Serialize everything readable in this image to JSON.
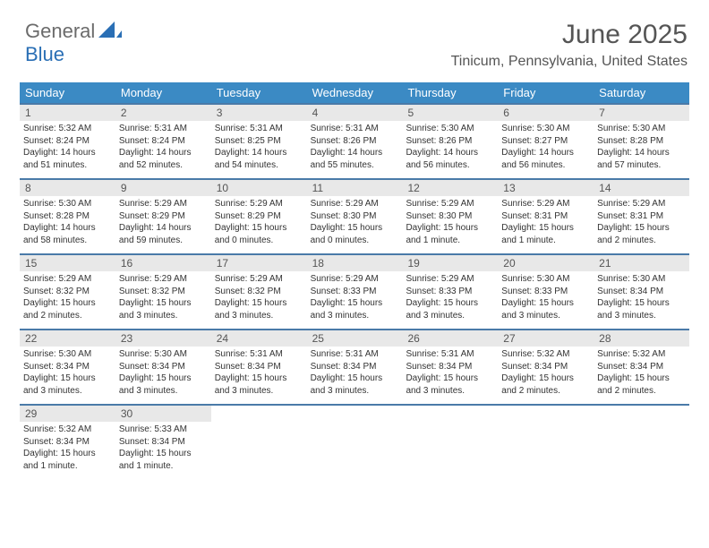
{
  "logo": {
    "part1": "General",
    "part2": "Blue"
  },
  "title": "June 2025",
  "location": "Tinicum, Pennsylvania, United States",
  "style": {
    "header_bg": "#3b8ac4",
    "header_fg": "#ffffff",
    "row_border": "#4a7aa8",
    "daynum_bg": "#e8e8e8",
    "daynum_fg": "#555555",
    "body_bg": "#ffffff",
    "text_color": "#333333",
    "title_color": "#555555",
    "logo_gray": "#6b6b6b",
    "logo_blue": "#2a6fb5",
    "title_fontsize": 30,
    "sub_fontsize": 16,
    "weekday_fontsize": 13,
    "cell_fontsize": 10
  },
  "weekdays": [
    "Sunday",
    "Monday",
    "Tuesday",
    "Wednesday",
    "Thursday",
    "Friday",
    "Saturday"
  ],
  "weeks": [
    [
      {
        "n": "1",
        "sr": "Sunrise: 5:32 AM",
        "ss": "Sunset: 8:24 PM",
        "d1": "Daylight: 14 hours",
        "d2": "and 51 minutes."
      },
      {
        "n": "2",
        "sr": "Sunrise: 5:31 AM",
        "ss": "Sunset: 8:24 PM",
        "d1": "Daylight: 14 hours",
        "d2": "and 52 minutes."
      },
      {
        "n": "3",
        "sr": "Sunrise: 5:31 AM",
        "ss": "Sunset: 8:25 PM",
        "d1": "Daylight: 14 hours",
        "d2": "and 54 minutes."
      },
      {
        "n": "4",
        "sr": "Sunrise: 5:31 AM",
        "ss": "Sunset: 8:26 PM",
        "d1": "Daylight: 14 hours",
        "d2": "and 55 minutes."
      },
      {
        "n": "5",
        "sr": "Sunrise: 5:30 AM",
        "ss": "Sunset: 8:26 PM",
        "d1": "Daylight: 14 hours",
        "d2": "and 56 minutes."
      },
      {
        "n": "6",
        "sr": "Sunrise: 5:30 AM",
        "ss": "Sunset: 8:27 PM",
        "d1": "Daylight: 14 hours",
        "d2": "and 56 minutes."
      },
      {
        "n": "7",
        "sr": "Sunrise: 5:30 AM",
        "ss": "Sunset: 8:28 PM",
        "d1": "Daylight: 14 hours",
        "d2": "and 57 minutes."
      }
    ],
    [
      {
        "n": "8",
        "sr": "Sunrise: 5:30 AM",
        "ss": "Sunset: 8:28 PM",
        "d1": "Daylight: 14 hours",
        "d2": "and 58 minutes."
      },
      {
        "n": "9",
        "sr": "Sunrise: 5:29 AM",
        "ss": "Sunset: 8:29 PM",
        "d1": "Daylight: 14 hours",
        "d2": "and 59 minutes."
      },
      {
        "n": "10",
        "sr": "Sunrise: 5:29 AM",
        "ss": "Sunset: 8:29 PM",
        "d1": "Daylight: 15 hours",
        "d2": "and 0 minutes."
      },
      {
        "n": "11",
        "sr": "Sunrise: 5:29 AM",
        "ss": "Sunset: 8:30 PM",
        "d1": "Daylight: 15 hours",
        "d2": "and 0 minutes."
      },
      {
        "n": "12",
        "sr": "Sunrise: 5:29 AM",
        "ss": "Sunset: 8:30 PM",
        "d1": "Daylight: 15 hours",
        "d2": "and 1 minute."
      },
      {
        "n": "13",
        "sr": "Sunrise: 5:29 AM",
        "ss": "Sunset: 8:31 PM",
        "d1": "Daylight: 15 hours",
        "d2": "and 1 minute."
      },
      {
        "n": "14",
        "sr": "Sunrise: 5:29 AM",
        "ss": "Sunset: 8:31 PM",
        "d1": "Daylight: 15 hours",
        "d2": "and 2 minutes."
      }
    ],
    [
      {
        "n": "15",
        "sr": "Sunrise: 5:29 AM",
        "ss": "Sunset: 8:32 PM",
        "d1": "Daylight: 15 hours",
        "d2": "and 2 minutes."
      },
      {
        "n": "16",
        "sr": "Sunrise: 5:29 AM",
        "ss": "Sunset: 8:32 PM",
        "d1": "Daylight: 15 hours",
        "d2": "and 3 minutes."
      },
      {
        "n": "17",
        "sr": "Sunrise: 5:29 AM",
        "ss": "Sunset: 8:32 PM",
        "d1": "Daylight: 15 hours",
        "d2": "and 3 minutes."
      },
      {
        "n": "18",
        "sr": "Sunrise: 5:29 AM",
        "ss": "Sunset: 8:33 PM",
        "d1": "Daylight: 15 hours",
        "d2": "and 3 minutes."
      },
      {
        "n": "19",
        "sr": "Sunrise: 5:29 AM",
        "ss": "Sunset: 8:33 PM",
        "d1": "Daylight: 15 hours",
        "d2": "and 3 minutes."
      },
      {
        "n": "20",
        "sr": "Sunrise: 5:30 AM",
        "ss": "Sunset: 8:33 PM",
        "d1": "Daylight: 15 hours",
        "d2": "and 3 minutes."
      },
      {
        "n": "21",
        "sr": "Sunrise: 5:30 AM",
        "ss": "Sunset: 8:34 PM",
        "d1": "Daylight: 15 hours",
        "d2": "and 3 minutes."
      }
    ],
    [
      {
        "n": "22",
        "sr": "Sunrise: 5:30 AM",
        "ss": "Sunset: 8:34 PM",
        "d1": "Daylight: 15 hours",
        "d2": "and 3 minutes."
      },
      {
        "n": "23",
        "sr": "Sunrise: 5:30 AM",
        "ss": "Sunset: 8:34 PM",
        "d1": "Daylight: 15 hours",
        "d2": "and 3 minutes."
      },
      {
        "n": "24",
        "sr": "Sunrise: 5:31 AM",
        "ss": "Sunset: 8:34 PM",
        "d1": "Daylight: 15 hours",
        "d2": "and 3 minutes."
      },
      {
        "n": "25",
        "sr": "Sunrise: 5:31 AM",
        "ss": "Sunset: 8:34 PM",
        "d1": "Daylight: 15 hours",
        "d2": "and 3 minutes."
      },
      {
        "n": "26",
        "sr": "Sunrise: 5:31 AM",
        "ss": "Sunset: 8:34 PM",
        "d1": "Daylight: 15 hours",
        "d2": "and 3 minutes."
      },
      {
        "n": "27",
        "sr": "Sunrise: 5:32 AM",
        "ss": "Sunset: 8:34 PM",
        "d1": "Daylight: 15 hours",
        "d2": "and 2 minutes."
      },
      {
        "n": "28",
        "sr": "Sunrise: 5:32 AM",
        "ss": "Sunset: 8:34 PM",
        "d1": "Daylight: 15 hours",
        "d2": "and 2 minutes."
      }
    ],
    [
      {
        "n": "29",
        "sr": "Sunrise: 5:32 AM",
        "ss": "Sunset: 8:34 PM",
        "d1": "Daylight: 15 hours",
        "d2": "and 1 minute."
      },
      {
        "n": "30",
        "sr": "Sunrise: 5:33 AM",
        "ss": "Sunset: 8:34 PM",
        "d1": "Daylight: 15 hours",
        "d2": "and 1 minute."
      },
      null,
      null,
      null,
      null,
      null
    ]
  ]
}
